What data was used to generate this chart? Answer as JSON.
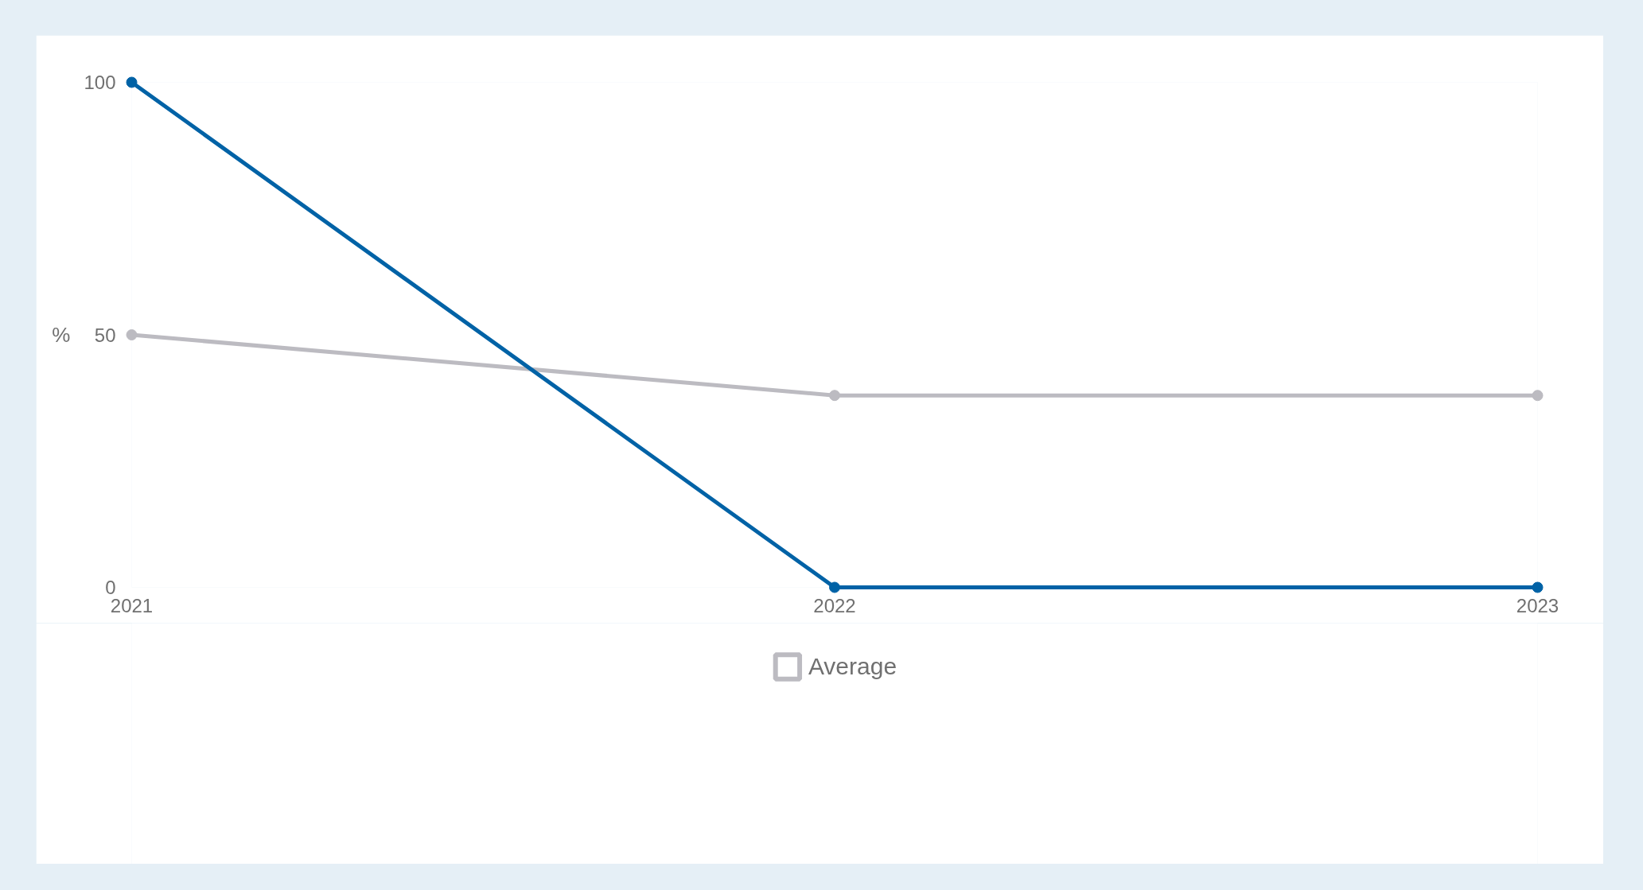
{
  "chart_data": {
    "type": "line",
    "categories": [
      "2021",
      "2022",
      "2023"
    ],
    "series": [
      {
        "color": "#0062a6",
        "values": [
          100,
          0,
          0
        ]
      },
      {
        "name": "Average",
        "color": "#bcbbc1",
        "values": [
          50,
          38,
          38
        ]
      }
    ],
    "ylabel": "%",
    "ylim": [
      0,
      100
    ],
    "yticks": [
      0,
      50,
      100
    ],
    "grid": false,
    "legend": "bottom",
    "marker": "circle"
  }
}
